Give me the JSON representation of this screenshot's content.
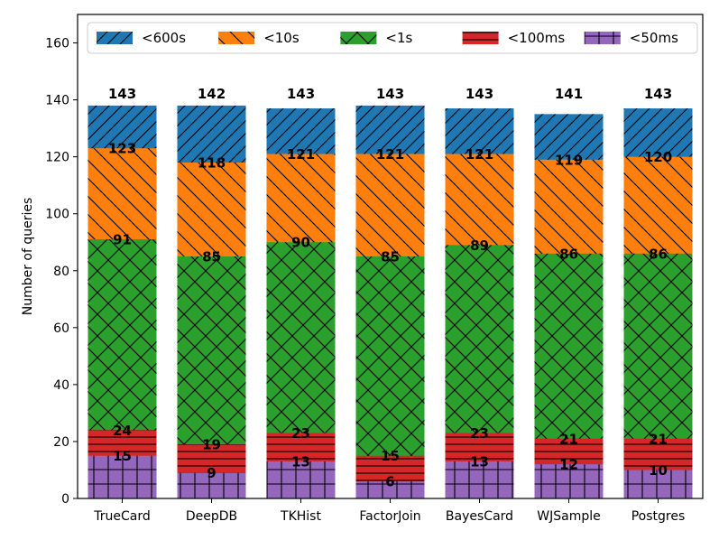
{
  "chart_data": {
    "type": "bar",
    "stacked": true,
    "categories": [
      "TrueCard",
      "DeepDB",
      "TKHist",
      "FactorJoin",
      "BayesCard",
      "WJSample",
      "Postgres"
    ],
    "ylabel": "Number of queries",
    "xlabel": "",
    "ylim": [
      0,
      170
    ],
    "yticks": [
      0,
      20,
      40,
      60,
      80,
      100,
      120,
      140,
      160
    ],
    "grid": false,
    "legend_position": "top",
    "series": [
      {
        "name": "<50ms",
        "color": "#9467bd",
        "hatch": "plus",
        "cumulative": [
          15,
          9,
          13,
          6,
          13,
          12,
          10
        ],
        "labels": [
          "15",
          "9",
          "13",
          "6",
          "13",
          "12",
          "10"
        ]
      },
      {
        "name": "<100ms",
        "color": "#d62728",
        "hatch": "horizontal",
        "cumulative": [
          24,
          19,
          23,
          15,
          23,
          21,
          21
        ],
        "labels": [
          "24",
          "19",
          "23",
          "15",
          "23",
          "21",
          "21"
        ]
      },
      {
        "name": "<1s",
        "color": "#2ca02c",
        "hatch": "cross",
        "cumulative": [
          91,
          85,
          90,
          85,
          89,
          86,
          86
        ],
        "labels": [
          "91",
          "85",
          "90",
          "85",
          "89",
          "86",
          "86"
        ]
      },
      {
        "name": "<10s",
        "color": "#ff7f0e",
        "hatch": "backslash",
        "cumulative": [
          123,
          118,
          121,
          121,
          121,
          119,
          120
        ],
        "labels": [
          "123",
          "118",
          "121",
          "121",
          "121",
          "119",
          "120"
        ]
      },
      {
        "name": "<600s",
        "color": "#1f77b4",
        "hatch": "slash",
        "cumulative": [
          138,
          138,
          137,
          138,
          137,
          135,
          137
        ],
        "labels": [
          "",
          "",
          "",
          "",
          "",
          "",
          ""
        ]
      }
    ],
    "totals": [
      "143",
      "142",
      "143",
      "143",
      "143",
      "141",
      "143"
    ],
    "legend_order": [
      "<600s",
      "<10s",
      "<1s",
      "<100ms",
      "<50ms"
    ]
  }
}
